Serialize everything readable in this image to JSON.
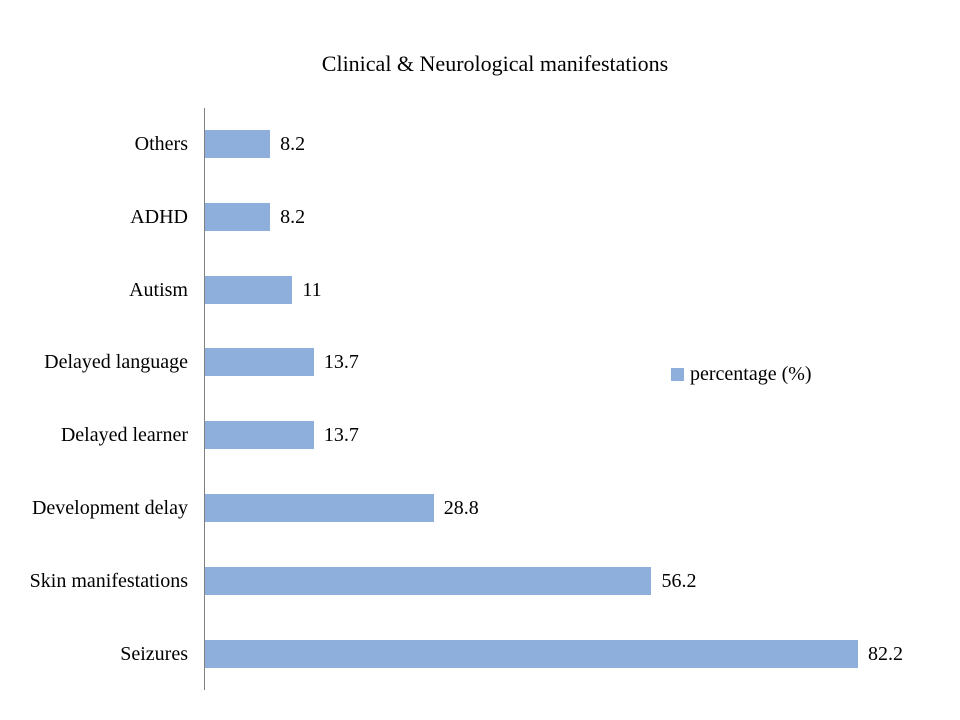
{
  "chart_data": {
    "type": "bar",
    "orientation": "horizontal",
    "title": "Clinical & Neurological manifestations",
    "categories": [
      "Others",
      "ADHD",
      "Autism",
      "Delayed language",
      "Delayed learner",
      "Development delay",
      "Skin manifestations",
      "Seizures"
    ],
    "values": [
      8.2,
      8.2,
      11,
      13.7,
      13.7,
      28.8,
      56.2,
      82.2
    ],
    "value_labels": [
      "8.2",
      "8.2",
      "11",
      "13.7",
      "13.7",
      "28.8",
      "56.2",
      "82.2"
    ],
    "series_name": "percentage (%)",
    "legend_position": "right",
    "xlim": [
      0,
      90
    ],
    "grid": false,
    "data_labels": true,
    "bar_color": "#8EAFDC",
    "axis_line_color": "#808080",
    "text_color": "#000000",
    "background_color": "#FFFFFF"
  }
}
